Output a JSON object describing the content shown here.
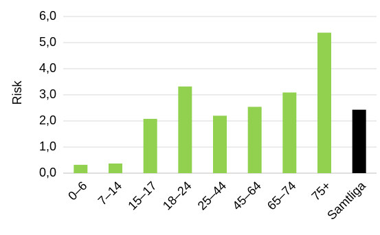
{
  "chart_data": {
    "type": "bar",
    "title": "",
    "xlabel": "",
    "ylabel": "Risk",
    "ylim": [
      0,
      6
    ],
    "yticks": [
      "0,0",
      "1,0",
      "2,0",
      "3,0",
      "4,0",
      "5,0",
      "6,0"
    ],
    "grid": true,
    "categories": [
      "0–6",
      "7–14",
      "15–17",
      "18–24",
      "25–44",
      "45–64",
      "65–74",
      "75+",
      "Samtliga"
    ],
    "values": [
      0.32,
      0.37,
      2.08,
      3.32,
      2.2,
      2.54,
      3.09,
      5.38,
      2.43
    ],
    "colors": [
      "#92d050",
      "#92d050",
      "#92d050",
      "#92d050",
      "#92d050",
      "#92d050",
      "#92d050",
      "#92d050",
      "#000000"
    ],
    "grid_color": "#d9d9d9",
    "axis_color": "#bfbfbf"
  }
}
